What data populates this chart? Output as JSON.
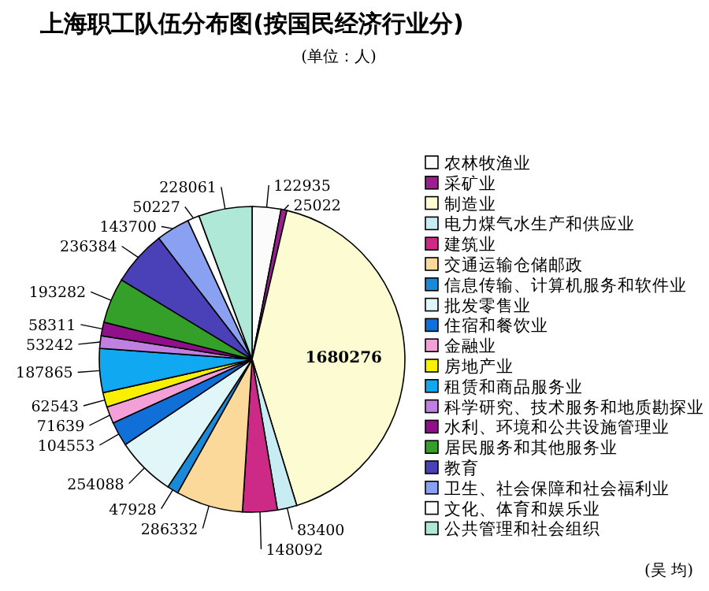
{
  "chart_data": {
    "type": "pie",
    "title": "上海职工队伍分布图(按国民经济行业分)",
    "subtitle": "(单位：人)",
    "categories": [
      "农林牧渔业",
      "采矿业",
      "制造业",
      "电力煤气水生产和供应业",
      "建筑业",
      "交通运输仓储邮政",
      "信息传输、计算机服务和软件业",
      "批发零售业",
      "住宿和餐饮业",
      "金融业",
      "房地产业",
      "租赁和商品服务业",
      "科学研究、技术服务和地质勘探业",
      "水利、环境和公共设施管理业",
      "居民服务和其他服务业",
      "教育",
      "卫生、社会保障和社会福利业",
      "文化、体育和娱乐业",
      "公共管理和社会组织"
    ],
    "values": [
      122935,
      25022,
      1680276,
      83400,
      148092,
      286332,
      47928,
      254088,
      104553,
      71639,
      62543,
      187865,
      53242,
      58311,
      193282,
      236384,
      143700,
      50227,
      228061
    ],
    "colors": [
      "#fbfbfb",
      "#9b1f8f",
      "#fdfbd2",
      "#c8ecf4",
      "#cc2a86",
      "#fbd99a",
      "#1a8ad8",
      "#e0f6f8",
      "#1070d8",
      "#f4a0d8",
      "#f8f000",
      "#10a8f0",
      "#c080e0",
      "#90108a",
      "#34a02a",
      "#4a40b8",
      "#8aa0f0",
      "#fdfdfd",
      "#b0e8d8"
    ],
    "data_labels": true,
    "legend": "right",
    "annotations": [
      "(吴 均)"
    ]
  }
}
